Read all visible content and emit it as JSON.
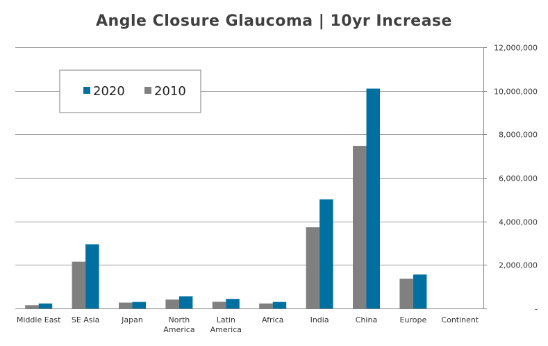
{
  "chart_data": {
    "type": "bar",
    "title": "Angle Closure Glaucoma | 10yr Increase",
    "xlabel": "",
    "ylabel": "",
    "categories": [
      [
        "Middle East"
      ],
      [
        "SE Asia"
      ],
      [
        "Japan"
      ],
      [
        "North",
        "America"
      ],
      [
        "Latin",
        "America"
      ],
      [
        "Africa"
      ],
      [
        "India"
      ],
      [
        "China"
      ],
      [
        "Europe"
      ],
      [
        "Continent"
      ]
    ],
    "series": [
      {
        "name": "2010",
        "color": "#808080",
        "values": [
          150000,
          2150000,
          270000,
          410000,
          310000,
          230000,
          3730000,
          7470000,
          1370000,
          0
        ]
      },
      {
        "name": "2020",
        "color": "#0070A0",
        "values": [
          230000,
          2950000,
          300000,
          560000,
          440000,
          300000,
          5010000,
          10100000,
          1560000,
          0
        ]
      }
    ],
    "legend_order": [
      "2020",
      "2010"
    ],
    "legend_position": "top-left",
    "ylim": [
      0,
      12000000
    ],
    "yticks": [
      "-",
      "2,000,000",
      "4,000,000",
      "6,000,000",
      "8,000,000",
      "10,000,000",
      "12,000,000"
    ],
    "y_axis_side": "right",
    "grid": true
  }
}
